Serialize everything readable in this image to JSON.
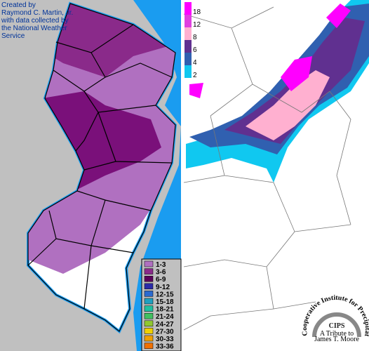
{
  "credit": [
    "Created by",
    "Raymond C. Martin, Jr.",
    "with data collected by",
    "the National Weather",
    "Service"
  ],
  "nj_legend": [
    {
      "label": "1-3",
      "color": "#b070c0"
    },
    {
      "label": "3-6",
      "color": "#8a2a8a"
    },
    {
      "label": "6-9",
      "color": "#5a005a"
    },
    {
      "label": "9-12",
      "color": "#2a2aa8"
    },
    {
      "label": "12-15",
      "color": "#2a6ad0"
    },
    {
      "label": "15-18",
      "color": "#20a0c0"
    },
    {
      "label": "18-21",
      "color": "#20c0a0"
    },
    {
      "label": "21-24",
      "color": "#40c060"
    },
    {
      "label": "24-27",
      "color": "#90c830"
    },
    {
      "label": "27-30",
      "color": "#f0d000"
    },
    {
      "label": "30-33",
      "color": "#f0a000"
    },
    {
      "label": "33-36",
      "color": "#f07000"
    }
  ],
  "ne_legend": [
    {
      "label": "18",
      "color": "#ff00ff"
    },
    {
      "label": "12",
      "color": "#e040e0"
    },
    {
      "label": "8",
      "color": "#ffb0d0"
    },
    {
      "label": "6",
      "color": "#603090"
    },
    {
      "label": "4",
      "color": "#3060b0"
    },
    {
      "label": "2",
      "color": "#10c8f0"
    }
  ],
  "logo": {
    "arc_text": "Cooperative Institute for Precipitation Systems",
    "name": "CIPS",
    "tribute": [
      "A Tribute to",
      "James T. Moore"
    ]
  }
}
